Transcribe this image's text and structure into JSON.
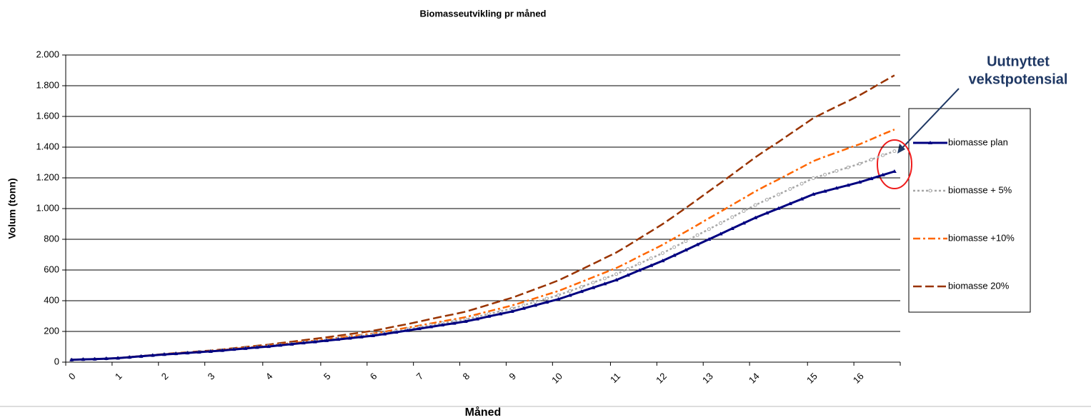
{
  "chart_data": {
    "type": "line",
    "title": "Biomasseutvikling pr måned",
    "x_label": "Måned",
    "y_label": "Volum (tonn)",
    "annotation": [
      "Uutnyttet",
      "vekstpotensial"
    ],
    "categories": [
      "0",
      null,
      null,
      null,
      "1",
      null,
      null,
      null,
      "2",
      null,
      null,
      null,
      "3",
      null,
      null,
      null,
      null,
      "4",
      null,
      null,
      null,
      null,
      "5",
      null,
      null,
      null,
      "6",
      null,
      null,
      null,
      "7",
      null,
      null,
      null,
      "8",
      null,
      null,
      null,
      "9",
      null,
      null,
      null,
      "10",
      null,
      null,
      null,
      null,
      "11",
      null,
      null,
      null,
      "12",
      null,
      null,
      null,
      "13",
      null,
      null,
      null,
      "14",
      null,
      null,
      null,
      null,
      "15",
      null,
      null,
      null,
      "16",
      null,
      null,
      null
    ],
    "ylim": [
      0,
      2000
    ],
    "yticks": [
      0,
      200,
      400,
      600,
      800,
      {
        "value": 1000,
        "label": "1.000"
      },
      {
        "value": 1200,
        "label": "1.200"
      },
      {
        "value": 1400,
        "label": "1.400"
      },
      {
        "value": 1600,
        "label": "1.600"
      },
      {
        "value": 1800,
        "label": "1.800"
      },
      {
        "value": 2000,
        "label": "2.000"
      }
    ],
    "grid": true,
    "legend": "right",
    "series": [
      {
        "name": "biomasse plan",
        "color": "#000080",
        "style": "solid",
        "marker": "triangle",
        "values": [
          15,
          18,
          20,
          23,
          26,
          32,
          38,
          44,
          50,
          55,
          60,
          65,
          70,
          76,
          83,
          89,
          96,
          102,
          110,
          117,
          125,
          132,
          140,
          148,
          156,
          164,
          172,
          183,
          195,
          206,
          218,
          230,
          242,
          253,
          265,
          281,
          298,
          314,
          330,
          350,
          370,
          390,
          410,
          435,
          460,
          485,
          510,
          535,
          566,
          598,
          629,
          660,
          695,
          730,
          765,
          800,
          835,
          870,
          905,
          940,
          971,
          1001,
          1032,
          1062,
          1093,
          1113,
          1133,
          1152,
          1172,
          1195,
          1219,
          1242
        ]
      },
      {
        "name": "biomasse + 5%",
        "color": "#a6a6a6",
        "style": "dotted",
        "marker": "circle",
        "values": [
          15,
          18,
          20,
          23,
          26,
          32,
          38,
          44,
          51,
          56,
          61,
          66,
          71,
          77,
          85,
          91,
          98,
          105,
          113,
          120,
          129,
          136,
          145,
          153,
          162,
          170,
          179,
          190,
          203,
          215,
          228,
          241,
          254,
          266,
          279,
          296,
          314,
          331,
          349,
          370,
          392,
          414,
          436,
          463,
          490,
          518,
          545,
          573,
          607,
          642,
          676,
          710,
          749,
          788,
          827,
          866,
          905,
          944,
          984,
          1023,
          1058,
          1092,
          1128,
          1162,
          1198,
          1221,
          1245,
          1268,
          1292,
          1319,
          1347,
          1374
        ]
      },
      {
        "name": "biomasse +10%",
        "color": "#ff6600",
        "style": "dashdot",
        "marker": "none",
        "values": [
          15,
          18,
          20,
          23,
          26,
          33,
          39,
          45,
          51,
          57,
          62,
          67,
          73,
          79,
          87,
          93,
          101,
          107,
          116,
          124,
          133,
          141,
          150,
          159,
          168,
          177,
          186,
          198,
          212,
          225,
          238,
          252,
          266,
          279,
          293,
          312,
          331,
          350,
          369,
          392,
          416,
          440,
          463,
          493,
          523,
          553,
          583,
          613,
          650,
          689,
          726,
          764,
          807,
          850,
          893,
          937,
          980,
          1024,
          1068,
          1112,
          1152,
          1190,
          1230,
          1269,
          1309,
          1338,
          1365,
          1392,
          1419,
          1451,
          1484,
          1515
        ]
      },
      {
        "name": "biomasse 20%",
        "color": "#993300",
        "style": "dashed",
        "marker": "none",
        "values": [
          15,
          18,
          20,
          23,
          27,
          33,
          40,
          46,
          53,
          59,
          64,
          70,
          76,
          83,
          91,
          99,
          107,
          114,
          124,
          133,
          143,
          152,
          162,
          172,
          183,
          193,
          204,
          218,
          234,
          248,
          264,
          281,
          297,
          312,
          329,
          351,
          374,
          397,
          419,
          447,
          475,
          503,
          532,
          568,
          604,
          640,
          677,
          714,
          759,
          806,
          852,
          899,
          951,
          1004,
          1058,
          1113,
          1167,
          1222,
          1278,
          1334,
          1385,
          1434,
          1486,
          1537,
          1589,
          1627,
          1664,
          1700,
          1738,
          1781,
          1825,
          1868
        ]
      }
    ]
  }
}
